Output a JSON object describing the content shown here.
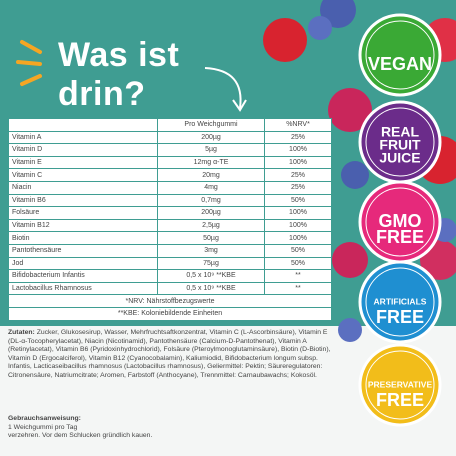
{
  "title": {
    "line1": "Was ist",
    "line2": "drin?"
  },
  "table": {
    "header": [
      "Pro Weichgummi",
      "%NRV*"
    ],
    "rows": [
      [
        "Vitamin A",
        "200µg",
        "25%"
      ],
      [
        "Vitamin D",
        "5µg",
        "100%"
      ],
      [
        "Vitamin E",
        "12mg α-TE",
        "100%"
      ],
      [
        "Vitamin C",
        "20mg",
        "25%"
      ],
      [
        "Niacin",
        "4mg",
        "25%"
      ],
      [
        "Vitamin B6",
        "0,7mg",
        "50%"
      ],
      [
        "Folsäure",
        "200µg",
        "100%"
      ],
      [
        "Vitamin B12",
        "2,5µg",
        "100%"
      ],
      [
        "Biotin",
        "50µg",
        "100%"
      ],
      [
        "Pantothensäure",
        "3mg",
        "50%"
      ],
      [
        "Jod",
        "75µg",
        "50%"
      ],
      [
        "Bifidobacterium Infantis",
        "0,5 x 10⁹ **KBE",
        "**"
      ],
      [
        "Lactobacillus Rhamnosus",
        "0,5 x 10⁹ **KBE",
        "**"
      ]
    ],
    "footnotes": [
      "*NRV: Nährstoffbezugswerte",
      "**KBE: Koloniebildende Einheiten"
    ]
  },
  "ingredients": {
    "label": "Zutaten:",
    "text": "Zucker, Glukosesirup, Wasser, Mehrfruchtsaftkonzentrat, Vitamin C (L-Ascorbinsäure), Vitamin E (DL-α-Tocopherylacetat), Niacin (Nicotinamid), Pantothensäure (Calcium-D-Pantothenat), Vitamin A (Retinylacetat), Vitamin B6 (Pyridoxinhydrochlorid), Folsäure (Pteroylmonoglutaminsäure), Biotin (D-Biotin), Vitamin D (Ergocalciferol), Vitamin B12 (Cyanocobalamin), Kaliumiodid, Bifidobacterium longum subsp. Infantis, Lacticaseibacillus rhamnosus (Lactobacillus rhamnosus), Geliermittel: Pektin; Säureregulatoren: Citronensäure, Natriumcitrate; Aromen, Farbstoff (Anthocyane), Trennmittel: Carnaubawachs; Kokosöl."
  },
  "usage": {
    "label": "Gebrauchsanweisung:",
    "lines": [
      "1 Weichgummi pro Tag",
      "verzehren. Vor dem Schlucken gründlich kauen."
    ]
  },
  "badges": [
    {
      "lines": [
        "VEGAN"
      ],
      "color": "#3aa935"
    },
    {
      "lines": [
        "REAL",
        "FRUIT",
        "JUICE"
      ],
      "color": "#6b2c8a"
    },
    {
      "lines": [
        "GMO",
        "FREE"
      ],
      "color": "#e6297b"
    },
    {
      "lines": [
        "ARTIFICIALS",
        "FREE"
      ],
      "color": "#1f8fd1"
    },
    {
      "lines": [
        "PRESERVATIVE",
        "FREE"
      ],
      "color": "#f2bd1a"
    }
  ]
}
